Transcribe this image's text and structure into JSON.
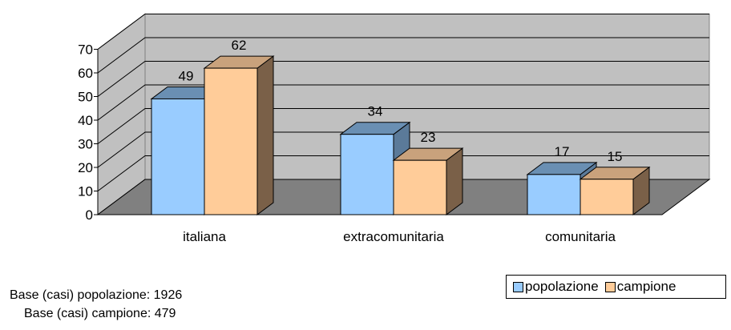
{
  "chart_data": {
    "type": "bar",
    "categories": [
      "italiana",
      "extracomunitaria",
      "comunitaria"
    ],
    "series": [
      {
        "name": "popolazione",
        "values": [
          49,
          34,
          17
        ],
        "color": "#99ccff",
        "side_color": "#5b7a99",
        "top_color": "#6a8fb3"
      },
      {
        "name": "campione",
        "values": [
          62,
          23,
          15
        ],
        "color": "#ffcc99",
        "side_color": "#7a6048",
        "top_color": "#c9a27c"
      }
    ],
    "yticks": [
      0,
      10,
      20,
      30,
      40,
      50,
      60,
      70
    ],
    "ylim": [
      0,
      70
    ],
    "grid": true,
    "legend_position": "bottom-right",
    "three_d": true,
    "wall_color": "#c0c0c0",
    "floor_color": "#808080"
  },
  "notes": {
    "base_popolazione": "Base (casi) popolazione: 1926",
    "base_campione": "Base (casi) campione: 479"
  }
}
